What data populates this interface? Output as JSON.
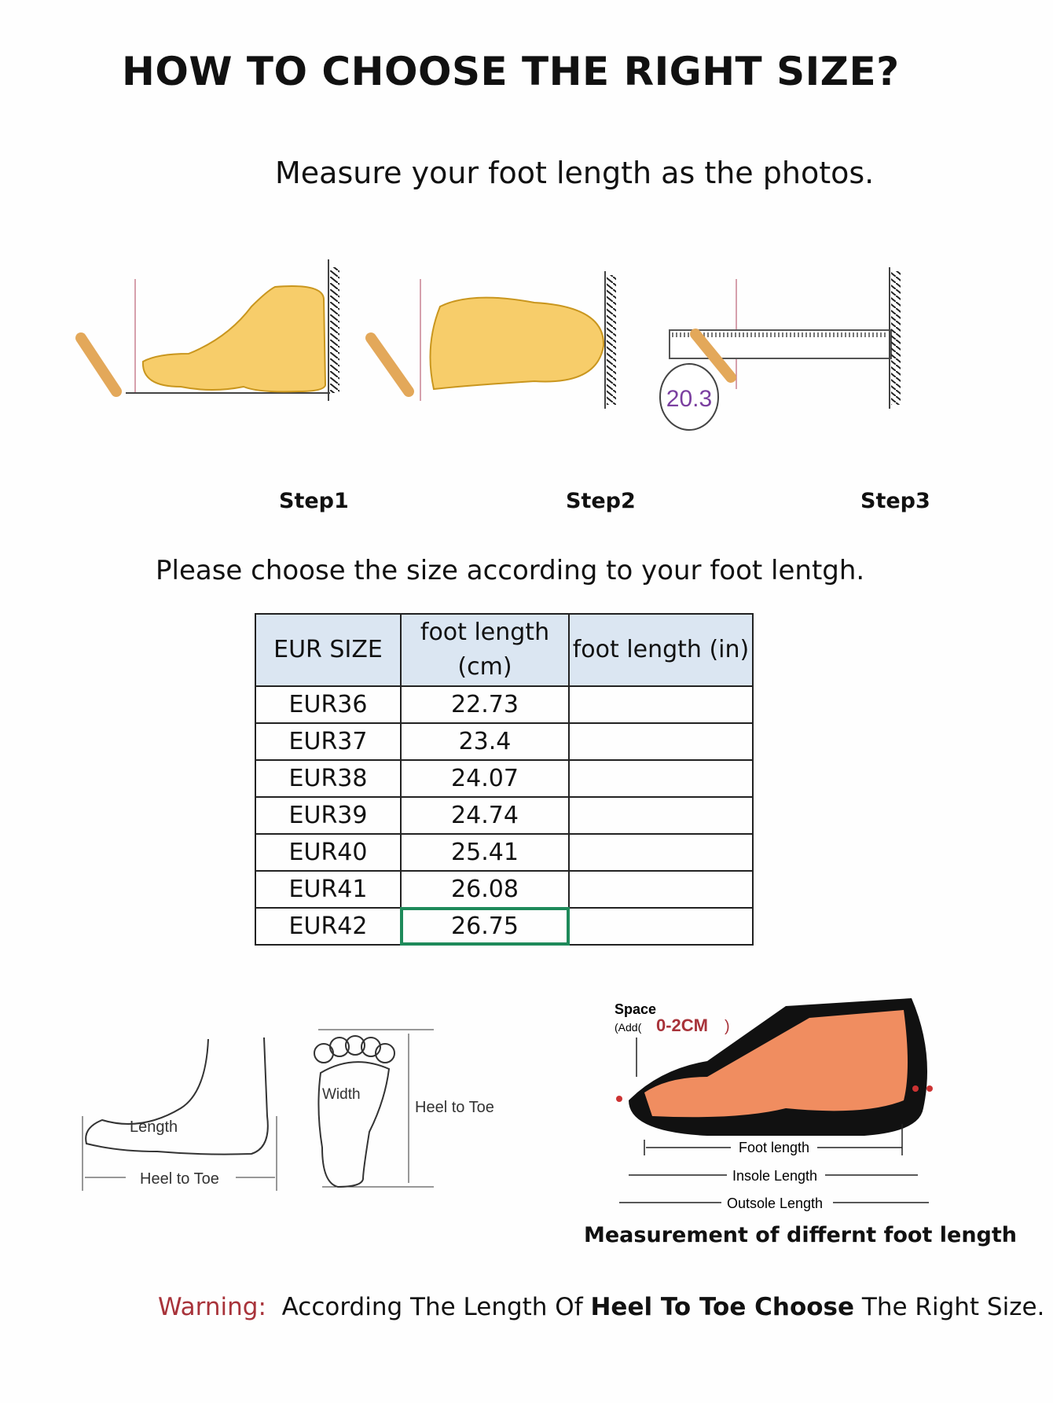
{
  "title": "HOW TO CHOOSE THE RIGHT SIZE?",
  "subtitle": "Measure your foot length as the photos.",
  "steps": [
    "Step1",
    "Step2",
    "Step3"
  ],
  "step3_reading": "20.3",
  "instruction": "Please choose the size according to your foot lentgh.",
  "size_table": {
    "headers": [
      "EUR SIZE",
      "foot length (cm)",
      "foot length (in)"
    ],
    "rows": [
      [
        "EUR36",
        "22.73",
        ""
      ],
      [
        "EUR37",
        "23.4",
        ""
      ],
      [
        "EUR38",
        "24.07",
        ""
      ],
      [
        "EUR39",
        "24.74",
        ""
      ],
      [
        "EUR40",
        "25.41",
        ""
      ],
      [
        "EUR41",
        "26.08",
        ""
      ],
      [
        "EUR42",
        "26.75",
        ""
      ]
    ],
    "selected_cell": "EUR42 / foot length (cm)",
    "header_color": "#dbe6f2",
    "selection_color": "#1e8a5a"
  },
  "diagram_labels": {
    "length": "Length",
    "heel_to_toe": "Heel to Toe",
    "width": "Width",
    "heel_to_toe_2": "Heel to Toe",
    "space": "Space",
    "add": "(Add(",
    "space_value": "0-2CM",
    "space_close": ")",
    "foot_length": "Foot length",
    "insole_length": "Insole Length",
    "outsole_length": "Outsole Length"
  },
  "caption": "Measurement of differnt foot length",
  "warning": {
    "label": "Warning:",
    "text1": "According The Length Of ",
    "bold": "Heel To Toe Choose",
    "text2": " The Right Size.",
    "label_color": "#a8333a"
  }
}
